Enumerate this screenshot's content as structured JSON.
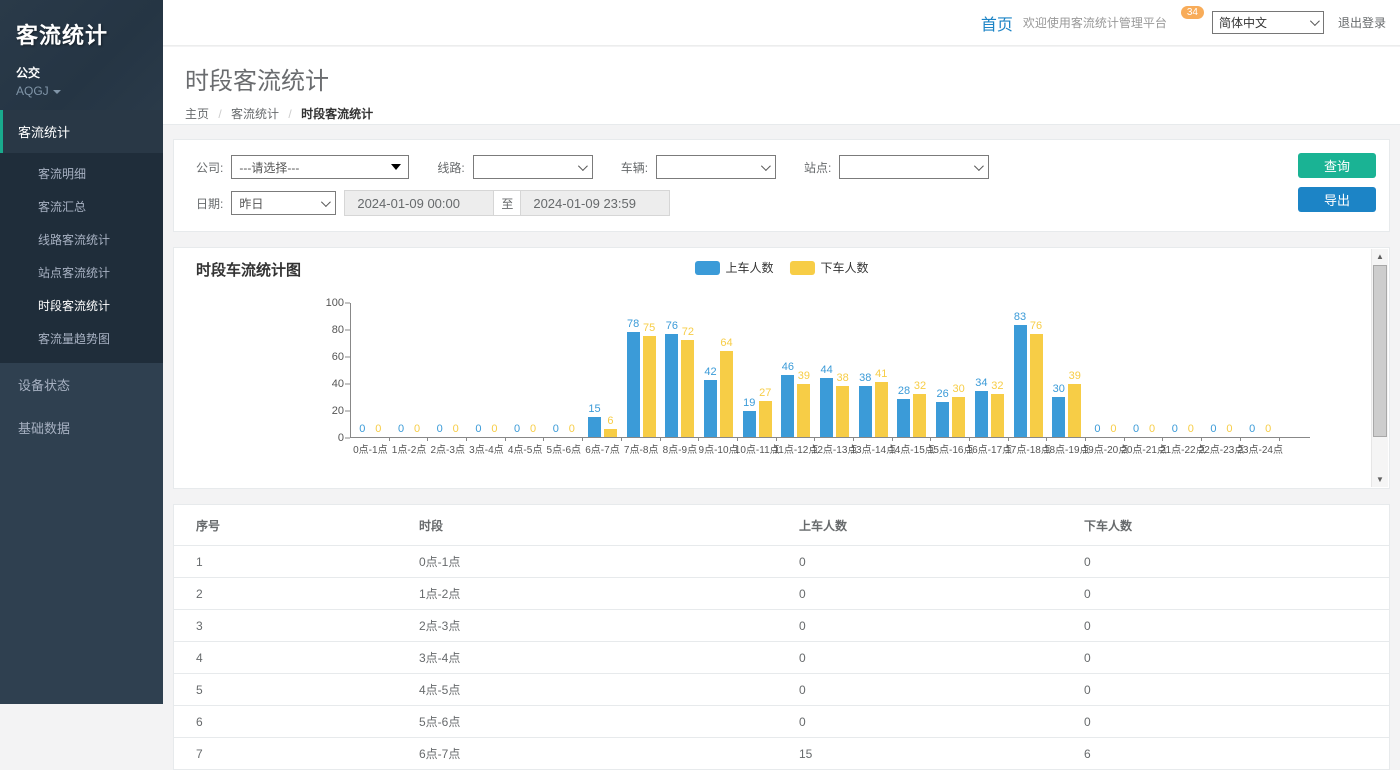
{
  "colors": {
    "sidebar_bg": "#2f4050",
    "submenu_bg": "#1f2d3a",
    "accent_green": "#1ab394",
    "accent_blue": "#1c84c6",
    "badge_orange": "#f8ac59",
    "series_boarding": "#3b9bd8",
    "series_alighting": "#f7cd46"
  },
  "sidebar": {
    "logo": "客流统计",
    "org_name": "公交",
    "org_code": "AQGJ",
    "sections": [
      {
        "label": "客流统计",
        "active": true,
        "items": [
          "客流明细",
          "客流汇总",
          "线路客流统计",
          "站点客流统计",
          "时段客流统计",
          "客流量趋势图"
        ],
        "current_item": "时段客流统计"
      },
      {
        "label": "设备状态",
        "active": false,
        "items": []
      },
      {
        "label": "基础数据",
        "active": false,
        "items": []
      }
    ]
  },
  "topbar": {
    "home": "首页",
    "welcome": "欢迎使用客流统计管理平台",
    "badge": "34",
    "language": "简体中文",
    "logout": "退出登录"
  },
  "page": {
    "title": "时段客流统计",
    "breadcrumb": [
      "主页",
      "客流统计",
      "时段客流统计"
    ]
  },
  "filters": {
    "company_label": "公司:",
    "company_value": "---请选择---",
    "line_label": "线路:",
    "line_value": "",
    "vehicle_label": "车辆:",
    "vehicle_value": "",
    "station_label": "站点:",
    "station_value": "",
    "date_label": "日期:",
    "date_preset": "昨日",
    "date_from": "2024-01-09 00:00",
    "date_to_sep": "至",
    "date_to": "2024-01-09 23:59",
    "search_button": "查询",
    "export_button": "导出"
  },
  "chart_data": {
    "type": "bar",
    "title": "时段车流统计图",
    "legend_position": "top",
    "grid": false,
    "ylim": [
      0,
      100
    ],
    "yticks": [
      0,
      20,
      40,
      60,
      80,
      100
    ],
    "categories": [
      "0点-1点",
      "1点-2点",
      "2点-3点",
      "3点-4点",
      "4点-5点",
      "5点-6点",
      "6点-7点",
      "7点-8点",
      "8点-9点",
      "9点-10点",
      "10点-11点",
      "11点-12点",
      "12点-13点",
      "13点-14点",
      "14点-15点",
      "15点-16点",
      "16点-17点",
      "17点-18点",
      "18点-19点",
      "19点-20点",
      "20点-21点",
      "21点-22点",
      "22点-23点",
      "23点-24点"
    ],
    "series": [
      {
        "name": "上车人数",
        "color": "#3b9bd8",
        "values": [
          0,
          0,
          0,
          0,
          0,
          0,
          15,
          78,
          76,
          42,
          19,
          46,
          44,
          38,
          28,
          26,
          34,
          83,
          30,
          0,
          0,
          0,
          0,
          0
        ]
      },
      {
        "name": "下车人数",
        "color": "#f7cd46",
        "values": [
          0,
          0,
          0,
          0,
          0,
          0,
          6,
          75,
          72,
          64,
          27,
          39,
          38,
          41,
          32,
          30,
          32,
          76,
          39,
          0,
          0,
          0,
          0,
          0
        ]
      }
    ]
  },
  "table": {
    "headers": [
      "序号",
      "时段",
      "上车人数",
      "下车人数"
    ],
    "rows": [
      [
        "1",
        "0点-1点",
        "0",
        "0"
      ],
      [
        "2",
        "1点-2点",
        "0",
        "0"
      ],
      [
        "3",
        "2点-3点",
        "0",
        "0"
      ],
      [
        "4",
        "3点-4点",
        "0",
        "0"
      ],
      [
        "5",
        "4点-5点",
        "0",
        "0"
      ],
      [
        "6",
        "5点-6点",
        "0",
        "0"
      ],
      [
        "7",
        "6点-7点",
        "15",
        "6"
      ]
    ]
  }
}
